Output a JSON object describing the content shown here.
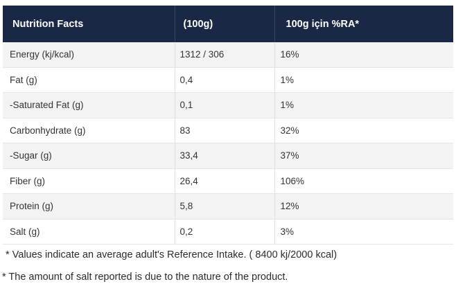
{
  "table": {
    "headers": [
      "Nutrition Facts",
      "(100g)",
      "100g için %RA*"
    ],
    "rows": [
      [
        "Energy (kj/kcal)",
        "1312 / 306",
        "16%"
      ],
      [
        "Fat (g)",
        "0,4",
        "1%"
      ],
      [
        "-Saturated Fat (g)",
        "0,1",
        "1%"
      ],
      [
        "Carbonhydrate (g)",
        "83",
        "32%"
      ],
      [
        "-Sugar (g)",
        "33,4",
        "37%"
      ],
      [
        "Fiber (g)",
        "26,4",
        "106%"
      ],
      [
        "Protein (g)",
        "5,8",
        "12%"
      ],
      [
        "Salt (g)",
        "0,2",
        "3%"
      ]
    ]
  },
  "footnotes": [
    " * Values indicate an average adult's Reference Intake. ( 8400 kj/2000 kcal)",
    "* The amount of salt reported is due to the nature of the product."
  ],
  "colors": {
    "header_background": "#1a2745",
    "header_text": "#ffffff",
    "row_stripe": "#f3f3f3"
  }
}
